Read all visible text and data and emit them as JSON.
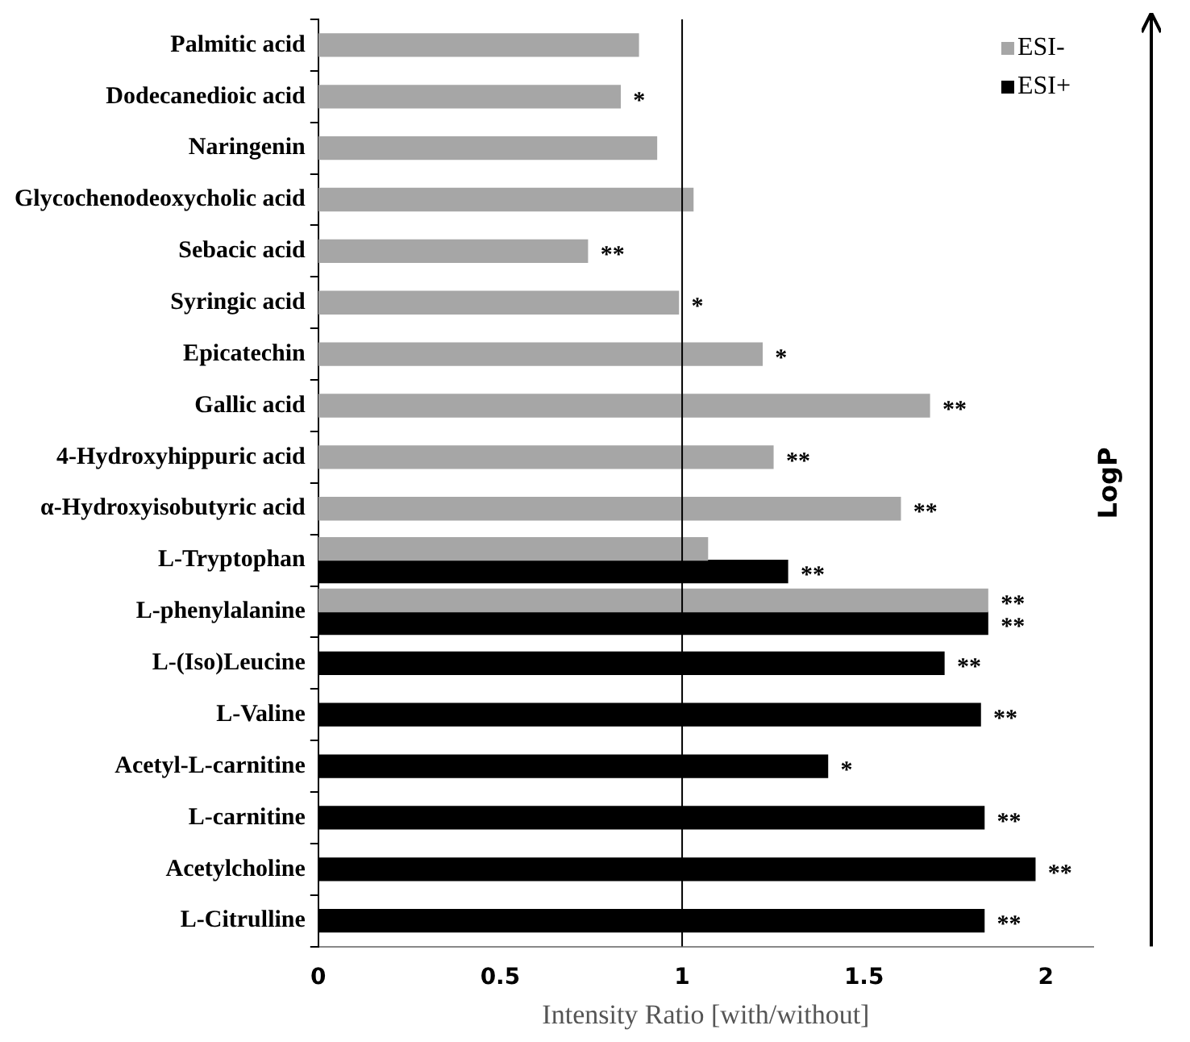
{
  "chart_data": {
    "type": "bar",
    "orientation": "horizontal",
    "xlabel": "Intensity Ratio [with/without]",
    "categories": [
      "Palmitic acid",
      "Dodecanedioic acid",
      "Naringenin",
      "Glycochenodeoxycholic acid",
      "Sebacic acid",
      "Syringic acid",
      "Epicatechin",
      "Gallic acid",
      "4-Hydroxyhippuric acid",
      "α-Hydroxyisobutyric acid",
      "L-Tryptophan",
      "L-phenylalanine",
      "L-(Iso)Leucine",
      "L-Valine",
      "Acetyl-L-carnitine",
      "L-carnitine",
      "Acetylcholine",
      "L-Citrulline"
    ],
    "series": [
      {
        "name": "ESI-",
        "color": "#a6a6a6",
        "values": [
          0.88,
          0.83,
          0.93,
          1.03,
          0.74,
          0.99,
          1.22,
          1.68,
          1.25,
          1.6,
          1.07,
          1.84,
          null,
          null,
          null,
          null,
          null,
          null
        ]
      },
      {
        "name": "ESI+",
        "color": "#000000",
        "values": [
          null,
          null,
          null,
          null,
          null,
          null,
          null,
          null,
          null,
          null,
          1.29,
          1.84,
          1.72,
          1.82,
          1.4,
          1.83,
          1.97,
          1.83
        ]
      }
    ],
    "xlim": [
      0,
      2.13
    ],
    "xticks": [
      0,
      0.5,
      1,
      1.5,
      2
    ],
    "ref_lines": [
      {
        "axis": "x",
        "value": 1,
        "color": "#000000"
      }
    ],
    "legend": "top right",
    "grid": false,
    "annotations": [
      {
        "text": "*",
        "x": 0.83,
        "y": "Dodecanedioic acid"
      },
      {
        "text": "**",
        "x": 0.74,
        "y": "Sebacic acid"
      },
      {
        "text": "*",
        "x": 0.99,
        "y": "Syringic acid"
      },
      {
        "text": "*",
        "x": 1.22,
        "y": "Epicatechin"
      },
      {
        "text": "**",
        "x": 1.68,
        "y": "Gallic acid"
      },
      {
        "text": "**",
        "x": 1.25,
        "y": "4-Hydroxyhippuric acid"
      },
      {
        "text": "**",
        "x": 1.6,
        "y": "α-Hydroxyisobutyric acid"
      },
      {
        "text": "**",
        "x": 1.29,
        "y": "L-Tryptophan"
      },
      {
        "text": "**",
        "x": 1.84,
        "y": "L-phenylalanine"
      },
      {
        "text": "**",
        "x": 1.84,
        "y": "L-phenylalanine"
      },
      {
        "text": "**",
        "x": 1.72,
        "y": "L-(Iso)Leucine"
      },
      {
        "text": "**",
        "x": 1.82,
        "y": "L-Valine"
      },
      {
        "text": "*",
        "x": 1.4,
        "y": "Acetyl-L-carnitine"
      },
      {
        "text": "**",
        "x": 1.83,
        "y": "L-carnitine"
      },
      {
        "text": "**",
        "x": 1.97,
        "y": "Acetylcholine"
      },
      {
        "text": "**",
        "x": 1.83,
        "y": "L-Citrulline"
      },
      "LogP"
    ]
  }
}
